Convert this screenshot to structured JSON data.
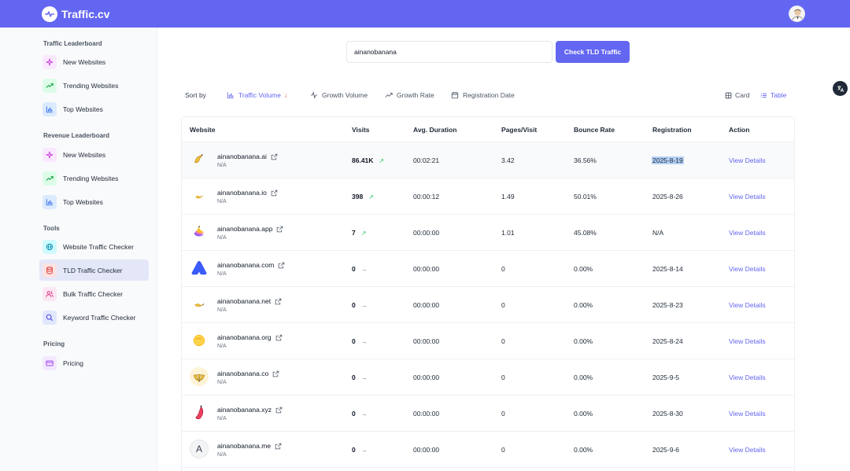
{
  "header": {
    "brand": "Traffic.cv",
    "accent": "#6366f1"
  },
  "sidebar": {
    "sections": [
      {
        "title": "Traffic Leaderboard",
        "items": [
          {
            "label": "New Websites",
            "icon": "sparkle-icon"
          },
          {
            "label": "Trending Websites",
            "icon": "trending-up-icon"
          },
          {
            "label": "Top Websites",
            "icon": "bar-chart-icon"
          }
        ]
      },
      {
        "title": "Revenue Leaderboard",
        "items": [
          {
            "label": "New Websites",
            "icon": "sparkle-icon"
          },
          {
            "label": "Trending Websites",
            "icon": "trending-up-icon"
          },
          {
            "label": "Top Websites",
            "icon": "bar-chart-icon"
          }
        ]
      },
      {
        "title": "Tools",
        "items": [
          {
            "label": "Website Traffic Checker",
            "icon": "globe-icon"
          },
          {
            "label": "TLD Traffic Checker",
            "icon": "database-icon",
            "active": true
          },
          {
            "label": "Bulk Traffic Checker",
            "icon": "users-icon"
          },
          {
            "label": "Keyword Traffic Checker",
            "icon": "search-icon"
          }
        ]
      },
      {
        "title": "Pricing",
        "items": [
          {
            "label": "Pricing",
            "icon": "credit-card-icon"
          }
        ]
      }
    ]
  },
  "search": {
    "value": "ainanobanana",
    "button_label": "Check TLD Traffic"
  },
  "sort": {
    "label": "Sort by",
    "options": [
      {
        "label": "Traffic Volume",
        "icon": "bar-chart-icon",
        "active": true
      },
      {
        "label": "Growth Volume",
        "icon": "activity-icon"
      },
      {
        "label": "Growth Rate",
        "icon": "trending-up-icon"
      },
      {
        "label": "Registration Date",
        "icon": "calendar-icon"
      }
    ]
  },
  "view": {
    "card_label": "Card",
    "table_label": "Table",
    "active": "table"
  },
  "table": {
    "columns": [
      "Website",
      "Visits",
      "Avg. Duration",
      "Pages/Visit",
      "Bounce Rate",
      "Registration",
      "Action"
    ],
    "rows": [
      {
        "domain": "ainanobanana.ai",
        "sub": "N/A",
        "visits": "86.41K",
        "trend": "up",
        "duration": "00:02:21",
        "pages": "3.42",
        "bounce": "36.56%",
        "registration": "2025-8-19",
        "action": "View Details",
        "icon": "banana-icon"
      },
      {
        "domain": "ainanobanana.io",
        "sub": "N/A",
        "visits": "398",
        "trend": "up",
        "duration": "00:00:12",
        "pages": "1.49",
        "bounce": "50.01%",
        "registration": "2025-8-26",
        "action": "View Details",
        "icon": "moon-banana-icon"
      },
      {
        "domain": "ainanobanana.app",
        "sub": "N/A",
        "visits": "7",
        "trend": "up",
        "duration": "00:00:00",
        "pages": "1.01",
        "bounce": "45.08%",
        "registration": "N/A",
        "action": "View Details",
        "icon": "colorful-banana-icon"
      },
      {
        "domain": "ainanobanana.com",
        "sub": "N/A",
        "visits": "0",
        "trend": "flat",
        "duration": "00:00:00",
        "pages": "0",
        "bounce": "0.00%",
        "registration": "2025-8-14",
        "action": "View Details",
        "icon": "blue-a-icon"
      },
      {
        "domain": "ainanobanana.net",
        "sub": "N/A",
        "visits": "0",
        "trend": "flat",
        "duration": "00:00:00",
        "pages": "0",
        "bounce": "0.00%",
        "registration": "2025-8-23",
        "action": "View Details",
        "icon": "banana-icon"
      },
      {
        "domain": "ainanobanana.org",
        "sub": "N/A",
        "visits": "0",
        "trend": "flat",
        "duration": "00:00:00",
        "pages": "0",
        "bounce": "0.00%",
        "registration": "2025-8-24",
        "action": "View Details",
        "icon": "yellow-circle-icon"
      },
      {
        "domain": "ainanobanana.co",
        "sub": "N/A",
        "visits": "0",
        "trend": "flat",
        "duration": "00:00:00",
        "pages": "0",
        "bounce": "0.00%",
        "registration": "2025-9-5",
        "action": "View Details",
        "icon": "banana-bunch-icon"
      },
      {
        "domain": "ainanobanana.xyz",
        "sub": "N/A",
        "visits": "0",
        "trend": "flat",
        "duration": "00:00:00",
        "pages": "0",
        "bounce": "0.00%",
        "registration": "2025-8-30",
        "action": "View Details",
        "icon": "pink-banana-icon"
      },
      {
        "domain": "ainanobanana.me",
        "sub": "N/A",
        "visits": "0",
        "trend": "flat",
        "duration": "00:00:00",
        "pages": "0",
        "bounce": "0.00%",
        "registration": "2025-9-6",
        "action": "View Details",
        "icon": "letter-a-icon",
        "icon_letter": "A"
      }
    ]
  }
}
